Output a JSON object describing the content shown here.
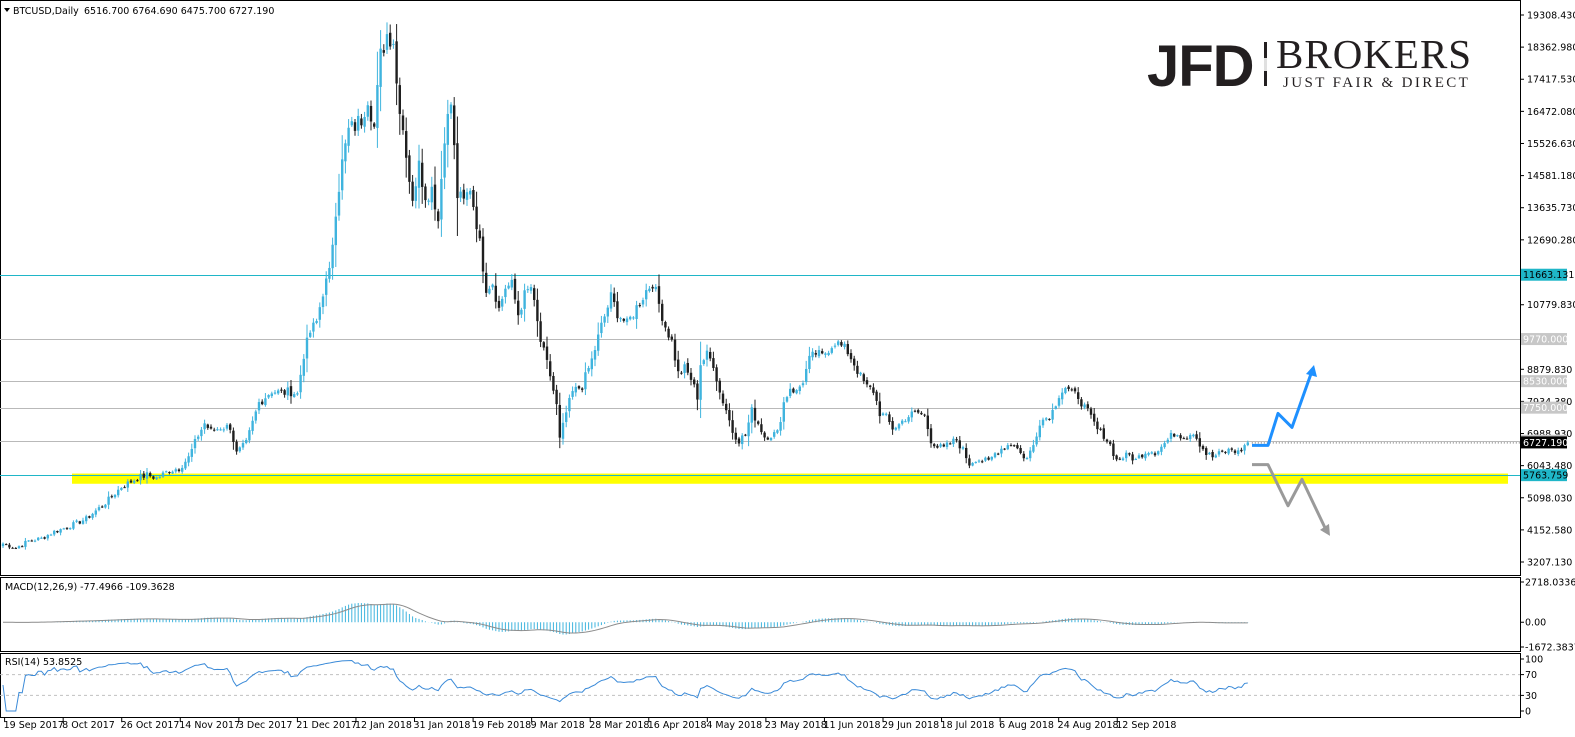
{
  "header": {
    "symbol": "BTCUSD,Daily",
    "ohlc": "6516.700 6764.690 6475.700 6727.190"
  },
  "logo": {
    "mark": "JFD",
    "name": "BROKERS",
    "tagline": "JUST FAIR & DIRECT"
  },
  "colors": {
    "bull_candle": "#3fb4de",
    "bear_candle": "#1f1f1f",
    "support_zone": "#ffff00",
    "resistance_line": "#1fb6c8",
    "level_line": "#b9b9b9",
    "arrow_up": "#1e90ff",
    "arrow_down": "#9a9a9a",
    "macd_hist": "#3fb4de",
    "macd_signal": "#8c8c8c",
    "rsi_line": "#3a8ad8"
  },
  "chart_data": [
    {
      "type": "candlestick",
      "symbol": "BTCUSD",
      "timeframe": "Daily",
      "y_ticks": [
        "19308.430",
        "18362.980",
        "17417.530",
        "16472.080",
        "15526.630",
        "14581.180",
        "13635.730",
        "12690.280",
        "10779.830",
        "8879.830",
        "7934.380",
        "6988.930",
        "6043.480",
        "5098.030",
        "4152.580",
        "3207.130"
      ],
      "ylim": [
        3207.13,
        19308.43
      ],
      "x_ticks": [
        "19 Sep 2017",
        "8 Oct 2017",
        "26 Oct 2017",
        "14 Nov 2017",
        "3 Dec 2017",
        "21 Dec 2017",
        "12 Jan 2018",
        "31 Jan 2018",
        "19 Feb 2018",
        "9 Mar 2018",
        "28 Mar 2018",
        "16 Apr 2018",
        "4 May 2018",
        "23 May 2018",
        "11 Jun 2018",
        "29 Jun 2018",
        "18 Jul 2018",
        "6 Aug 2018",
        "24 Aug 2018",
        "12 Sep 2018"
      ],
      "key_prices": [
        {
          "name": "resistance",
          "value": 11663.131,
          "label": "11663.131"
        },
        {
          "name": "level-9770",
          "value": 9770.0,
          "label": "9770.000"
        },
        {
          "name": "level-8530",
          "value": 8530.0,
          "label": "8530.000"
        },
        {
          "name": "level-7750",
          "value": 7750.0,
          "label": "7750.000"
        },
        {
          "name": "level-6775",
          "value": 6775.0,
          "label": "6775.000"
        },
        {
          "name": "current",
          "value": 6727.19,
          "label": "6727.190"
        },
        {
          "name": "support",
          "value": 5763.759,
          "label": "5763.759"
        }
      ],
      "support_zone": [
        5510,
        5810
      ],
      "anchors": [
        [
          0,
          3750
        ],
        [
          4,
          3620
        ],
        [
          8,
          3830
        ],
        [
          12,
          3900
        ],
        [
          16,
          4100
        ],
        [
          20,
          4230
        ],
        [
          26,
          4480
        ],
        [
          32,
          4950
        ],
        [
          37,
          5420
        ],
        [
          42,
          5680
        ],
        [
          45,
          5770
        ],
        [
          48,
          5680
        ],
        [
          52,
          5900
        ],
        [
          55,
          5970
        ],
        [
          58,
          6280
        ],
        [
          61,
          6940
        ],
        [
          63,
          7290
        ],
        [
          65,
          7050
        ],
        [
          68,
          7170
        ],
        [
          71,
          7190
        ],
        [
          73,
          6400
        ],
        [
          76,
          6700
        ],
        [
          80,
          7900
        ],
        [
          84,
          8250
        ],
        [
          87,
          8180
        ],
        [
          90,
          8230
        ],
        [
          92,
          8150
        ],
        [
          94,
          9320
        ],
        [
          96,
          9970
        ],
        [
          98,
          10270
        ],
        [
          100,
          11170
        ],
        [
          102,
          11700
        ],
        [
          104,
          13600
        ],
        [
          106,
          14950
        ],
        [
          108,
          15900
        ],
        [
          110,
          16050
        ],
        [
          112,
          16250
        ],
        [
          114,
          16900
        ],
        [
          116,
          16000
        ],
        [
          118,
          18100
        ],
        [
          120,
          18750
        ],
        [
          122,
          18600
        ],
        [
          123,
          17300
        ],
        [
          125,
          16000
        ],
        [
          127,
          14500
        ],
        [
          128,
          13700
        ],
        [
          130,
          15200
        ],
        [
          132,
          13800
        ],
        [
          134,
          14300
        ],
        [
          136,
          13250
        ],
        [
          138,
          15800
        ],
        [
          140,
          16700
        ],
        [
          142,
          14000
        ],
        [
          144,
          13800
        ],
        [
          146,
          14250
        ],
        [
          148,
          13200
        ],
        [
          151,
          11300
        ],
        [
          153,
          11450
        ],
        [
          155,
          10650
        ],
        [
          157,
          11300
        ],
        [
          159,
          11350
        ],
        [
          161,
          10500
        ],
        [
          163,
          11050
        ],
        [
          165,
          11300
        ],
        [
          168,
          9700
        ],
        [
          171,
          8700
        ],
        [
          173,
          7800
        ],
        [
          174,
          6800
        ],
        [
          176,
          7600
        ],
        [
          178,
          8200
        ],
        [
          181,
          8400
        ],
        [
          184,
          9150
        ],
        [
          187,
          10150
        ],
        [
          190,
          11000
        ],
        [
          192,
          10550
        ],
        [
          195,
          10200
        ],
        [
          198,
          10700
        ],
        [
          201,
          11200
        ],
        [
          203,
          11450
        ],
        [
          205,
          10800
        ],
        [
          207,
          10150
        ],
        [
          209,
          9700
        ],
        [
          211,
          8750
        ],
        [
          213,
          8900
        ],
        [
          215,
          8600
        ],
        [
          217,
          8080
        ],
        [
          218,
          9050
        ],
        [
          220,
          9300
        ],
        [
          222,
          9050
        ],
        [
          224,
          8200
        ],
        [
          226,
          7700
        ],
        [
          228,
          7050
        ],
        [
          230,
          6800
        ],
        [
          232,
          6950
        ],
        [
          234,
          7650
        ],
        [
          236,
          7300
        ],
        [
          238,
          6900
        ],
        [
          240,
          6950
        ],
        [
          242,
          7000
        ],
        [
          244,
          7900
        ],
        [
          246,
          8350
        ],
        [
          248,
          8200
        ],
        [
          250,
          8550
        ],
        [
          252,
          9150
        ],
        [
          254,
          9350
        ],
        [
          256,
          9250
        ],
        [
          258,
          9500
        ],
        [
          260,
          9700
        ],
        [
          262,
          9550
        ],
        [
          264,
          9400
        ],
        [
          266,
          9050
        ],
        [
          268,
          8650
        ],
        [
          270,
          8350
        ],
        [
          272,
          8250
        ],
        [
          274,
          7600
        ],
        [
          276,
          7450
        ],
        [
          278,
          7150
        ],
        [
          280,
          7250
        ],
        [
          282,
          7450
        ],
        [
          284,
          7550
        ],
        [
          286,
          7600
        ],
        [
          288,
          7500
        ],
        [
          290,
          6800
        ],
        [
          292,
          6600
        ],
        [
          294,
          6550
        ],
        [
          296,
          6700
        ],
        [
          298,
          6800
        ],
        [
          300,
          6500
        ],
        [
          302,
          6100
        ],
        [
          304,
          6250
        ],
        [
          306,
          6200
        ],
        [
          308,
          6150
        ],
        [
          310,
          6400
        ],
        [
          312,
          6550
        ],
        [
          314,
          6650
        ],
        [
          316,
          6700
        ],
        [
          318,
          6400
        ],
        [
          320,
          6250
        ],
        [
          322,
          6650
        ],
        [
          324,
          7350
        ],
        [
          326,
          7450
        ],
        [
          328,
          7650
        ],
        [
          330,
          8150
        ],
        [
          332,
          8350
        ],
        [
          334,
          8150
        ],
        [
          336,
          8100
        ],
        [
          338,
          7750
        ],
        [
          340,
          7450
        ],
        [
          342,
          7100
        ],
        [
          344,
          6950
        ],
        [
          346,
          6650
        ],
        [
          348,
          6200
        ],
        [
          350,
          6300
        ],
        [
          352,
          6350
        ],
        [
          354,
          6200
        ],
        [
          356,
          6400
        ],
        [
          358,
          6500
        ],
        [
          360,
          6450
        ],
        [
          362,
          6600
        ],
        [
          364,
          6800
        ],
        [
          366,
          7000
        ],
        [
          368,
          6950
        ],
        [
          370,
          6920
        ],
        [
          372,
          7050
        ],
        [
          374,
          6700
        ],
        [
          376,
          6400
        ],
        [
          378,
          6300
        ],
        [
          380,
          6380
        ],
        [
          382,
          6450
        ],
        [
          384,
          6520
        ],
        [
          386,
          6430
        ],
        [
          388,
          6620
        ],
        [
          389,
          6727
        ]
      ]
    },
    {
      "type": "line",
      "title": "MACD(12,26,9) -77.4966 -109.3628",
      "y_ticks": [
        "2718.0336",
        "0.00",
        "-1672.3837"
      ],
      "ylim": [
        -1672.3837,
        2718.0336
      ]
    },
    {
      "type": "line",
      "title": "RSI(14) 53.8525",
      "y_ticks": [
        "100",
        "70",
        "30",
        "0"
      ],
      "ylim": [
        0,
        100
      ],
      "levels": [
        70,
        30
      ]
    }
  ]
}
